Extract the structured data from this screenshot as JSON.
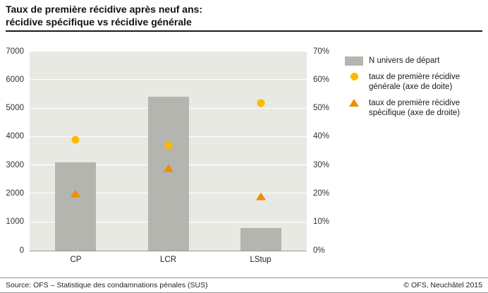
{
  "title": {
    "line1": "Taux de première récidive après neuf ans:",
    "line2": "récidive spécifique vs récidive générale"
  },
  "legend": {
    "items": [
      {
        "label": "N univers de départ"
      },
      {
        "label": "taux de première récidive générale (axe de doite)"
      },
      {
        "label": "taux de première récidive spécifique (axe de droite)"
      }
    ]
  },
  "chart_data": {
    "type": "bar",
    "categories": [
      "CP",
      "LCR",
      "LStup"
    ],
    "series": [
      {
        "name": "N univers de départ",
        "kind": "bar",
        "axis": "left",
        "values": [
          3100,
          5400,
          800
        ]
      },
      {
        "name": "taux de première récidive générale",
        "kind": "point-circle",
        "axis": "right",
        "values": [
          39,
          37,
          52
        ]
      },
      {
        "name": "taux de première récidive spécifique",
        "kind": "point-triangle",
        "axis": "right",
        "values": [
          20,
          29,
          19
        ]
      }
    ],
    "left_axis": {
      "min": 0,
      "max": 7000,
      "step": 1000,
      "ticks": [
        "0",
        "1000",
        "2000",
        "3000",
        "4000",
        "5000",
        "6000",
        "7000"
      ]
    },
    "right_axis": {
      "min": 0,
      "max": 70,
      "step": 10,
      "ticks": [
        "0%",
        "10%",
        "20%",
        "30%",
        "40%",
        "50%",
        "60%",
        "70%"
      ]
    },
    "grid": true,
    "legend_position": "right"
  },
  "footer": {
    "source": "Source: OFS – Statistique des condamnations pénales (SUS)",
    "copyright": "© OFS, Neuchâtel 2015"
  },
  "colors": {
    "bar": "#b5b5b0",
    "circle": "#fbba00",
    "triangle": "#f08c00",
    "plot_bg": "#e9e9e4",
    "grid": "#ffffff"
  }
}
